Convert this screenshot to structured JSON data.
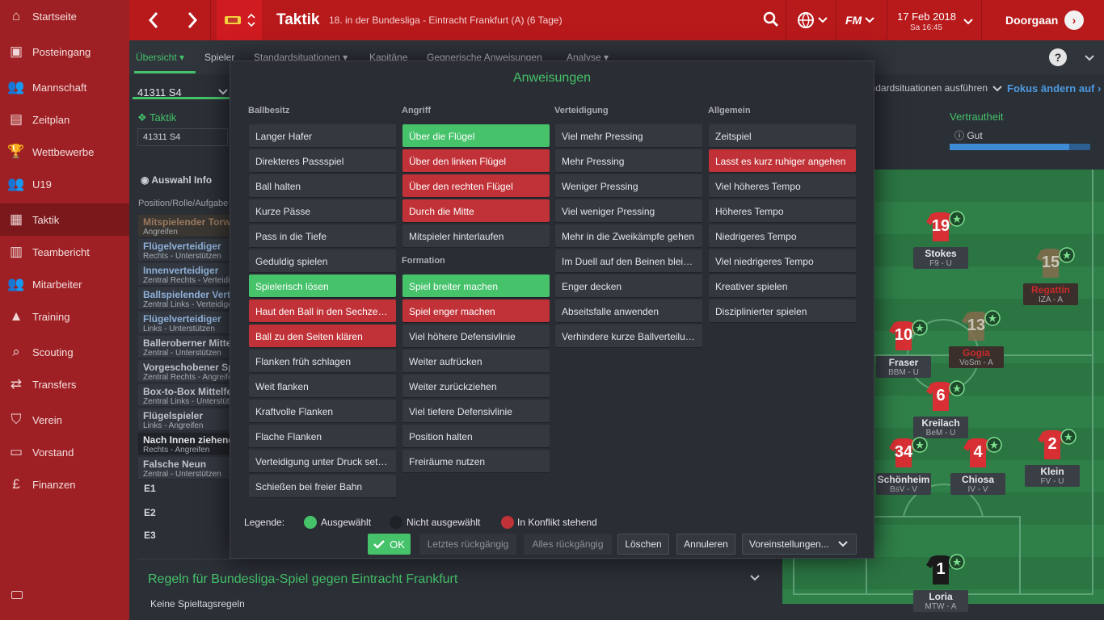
{
  "sidebar": {
    "items": [
      {
        "label": "Startseite",
        "icon": "home-icon"
      },
      {
        "label": "Posteingang",
        "icon": "inbox-icon"
      },
      {
        "label": "Mannschaft",
        "icon": "people-icon"
      },
      {
        "label": "Zeitplan",
        "icon": "calendar-icon"
      },
      {
        "label": "Wettbewerbe",
        "icon": "trophy-icon"
      },
      {
        "label": "U19",
        "icon": "youth-icon",
        "badge": "U19"
      },
      {
        "label": "Taktik",
        "icon": "tactics-icon"
      },
      {
        "label": "Teambericht",
        "icon": "report-icon"
      },
      {
        "label": "Mitarbeiter",
        "icon": "staff-icon"
      },
      {
        "label": "Training",
        "icon": "training-icon"
      },
      {
        "label": "Scouting",
        "icon": "search-icon"
      },
      {
        "label": "Transfers",
        "icon": "transfer-icon"
      },
      {
        "label": "Verein",
        "icon": "shield-icon"
      },
      {
        "label": "Vorstand",
        "icon": "briefcase-icon"
      },
      {
        "label": "Finanzen",
        "icon": "money-icon"
      }
    ],
    "active": "Taktik"
  },
  "header": {
    "title": "Taktik",
    "subtitle": "18. in der Bundesliga - Eintracht Frankfurt (A) (6 Tage)",
    "fm_label": "FM",
    "date": "17 Feb 2018",
    "day_time": "Sa 16:45",
    "continue_label": "Doorgaan",
    "brand_color": "#b8191b"
  },
  "tabs": [
    "Übersicht",
    "Spieler",
    "Standardsituationen",
    "Kapitäne",
    "Gegnerische Anweisungen",
    "Analyse"
  ],
  "active_tab": "Übersicht",
  "background": {
    "formation": "41311 S4",
    "formation_small": "41311 S4",
    "taktik_label": "Taktik",
    "auswahl": "Auswahl Info",
    "pos_header": "Position/Rolle/Aufgabe",
    "positions": [
      {
        "name": "Mitspielender Torwart",
        "duty": "Angreifen",
        "color": "#9a7a5e"
      },
      {
        "name": "Flügelverteidiger",
        "duty": "Rechts - Unterstützen",
        "color": "#8fb0d9"
      },
      {
        "name": "Innenverteidiger",
        "duty": "Zentral Rechts - Verteidigen",
        "color": "#8fb0d9"
      },
      {
        "name": "Ballspielender Verteidiger",
        "duty": "Zentral Links - Verteidigen",
        "color": "#8fb0d9"
      },
      {
        "name": "Flügelverteidiger",
        "duty": "Links - Unterstützen",
        "color": "#8fb0d9"
      },
      {
        "name": "Balleroberner Mittelfeldspieler",
        "duty": "Zentral - Unterstützen",
        "color": "#c0c4ca"
      },
      {
        "name": "Vorgeschobener Spielmacher",
        "duty": "Zentral Rechts - Angreifen",
        "color": "#c0c4ca"
      },
      {
        "name": "Box-to-Box Mittelfeldspieler",
        "duty": "Zentral Links - Unterstützen",
        "color": "#c0c4ca"
      },
      {
        "name": "Flügelspieler",
        "duty": "Links - Angreifen",
        "color": "#c0c4ca"
      },
      {
        "name": "Nach Innen ziehender Flügelspieler",
        "duty": "Rechts - Angreifen",
        "color": "#e6e7e9"
      },
      {
        "name": "Falsche Neun",
        "duty": "Zentral - Unterstützen",
        "color": "#c0c4ca"
      }
    ],
    "subs": [
      "E1",
      "E2",
      "E3"
    ],
    "regeln": "Regeln für Bundesliga-Spiel gegen Eintracht Frankfurt",
    "keine": "Keine Spieltagsregeln",
    "standard_strip": "Standardsituationen ausführen",
    "fokus": "Fokus ändern auf",
    "vertrautheit": "Vertrautheit",
    "gut": "Gut",
    "gut_level": 0.85
  },
  "players": [
    {
      "num": "19",
      "name": "Stokes",
      "role": "F9 - U"
    },
    {
      "num": "15",
      "name": "Regattin",
      "role": "IZA - A"
    },
    {
      "num": "10",
      "name": "Fraser",
      "role": "BBM - U"
    },
    {
      "num": "13",
      "name": "Gogia",
      "role": "VoSm - A"
    },
    {
      "num": "6",
      "name": "Kreilach",
      "role": "BeM - U"
    },
    {
      "num": "34",
      "name": "Schönheim",
      "role": "BsV - V"
    },
    {
      "num": "4",
      "name": "Chiosa",
      "role": "IV - V"
    },
    {
      "num": "2",
      "name": "Klein",
      "role": "FV - U"
    },
    {
      "num": "1",
      "name": "Loria",
      "role": "MTW - A"
    }
  ],
  "modal": {
    "title": "Anweisungen",
    "columns": [
      {
        "header": "Ballbesitz"
      },
      {
        "header": "Angriff"
      },
      {
        "header": "Verteidigung"
      },
      {
        "header": "Allgemein"
      }
    ],
    "formation_header": "Formation",
    "ballbesitz": [
      {
        "label": "Langer Hafer",
        "state": "none"
      },
      {
        "label": "Direkteres Passspiel",
        "state": "none"
      },
      {
        "label": "Ball halten",
        "state": "none"
      },
      {
        "label": "Kurze Pässe",
        "state": "none"
      },
      {
        "label": "Pass in die Tiefe",
        "state": "none"
      },
      {
        "label": "Geduldig spielen",
        "state": "none"
      },
      {
        "label": "Spielerisch lösen",
        "state": "sel"
      },
      {
        "label": "Haut den Ball in den Sechzehner",
        "state": "conf"
      },
      {
        "label": "Ball zu den Seiten klären",
        "state": "conf"
      },
      {
        "label": "Flanken früh schlagen",
        "state": "none"
      },
      {
        "label": "Weit flanken",
        "state": "none"
      },
      {
        "label": "Kraftvolle Flanken",
        "state": "none"
      },
      {
        "label": "Flache Flanken",
        "state": "none"
      },
      {
        "label": "Verteidigung unter Druck setzen",
        "state": "none"
      },
      {
        "label": "Schießen bei freier Bahn",
        "state": "none"
      }
    ],
    "angriff": [
      {
        "label": "Über die Flügel",
        "state": "sel"
      },
      {
        "label": "Über den linken Flügel",
        "state": "conf"
      },
      {
        "label": "Über den rechten Flügel",
        "state": "conf"
      },
      {
        "label": "Durch die Mitte",
        "state": "conf"
      },
      {
        "label": "Mitspieler hinterlaufen",
        "state": "none"
      }
    ],
    "formation": [
      {
        "label": "Spiel breiter machen",
        "state": "sel"
      },
      {
        "label": "Spiel enger machen",
        "state": "conf"
      },
      {
        "label": "Viel höhere Defensivlinie",
        "state": "none"
      },
      {
        "label": "Weiter aufrücken",
        "state": "none"
      },
      {
        "label": "Weiter zurückziehen",
        "state": "none"
      },
      {
        "label": "Viel tiefere Defensivlinie",
        "state": "none"
      },
      {
        "label": "Position halten",
        "state": "none"
      },
      {
        "label": "Freiräume nutzen",
        "state": "none"
      }
    ],
    "verteidigung": [
      {
        "label": "Viel mehr Pressing",
        "state": "none"
      },
      {
        "label": "Mehr Pressing",
        "state": "none"
      },
      {
        "label": "Weniger Pressing",
        "state": "none"
      },
      {
        "label": "Viel weniger Pressing",
        "state": "none"
      },
      {
        "label": "Mehr in die Zweikämpfe gehen",
        "state": "none"
      },
      {
        "label": "Im Duell auf den Beinen bleiben",
        "state": "none"
      },
      {
        "label": "Enger decken",
        "state": "none"
      },
      {
        "label": "Abseitsfalle anwenden",
        "state": "none"
      },
      {
        "label": "Verhindere kurze Ballverteilung",
        "state": "none"
      }
    ],
    "allgemein": [
      {
        "label": "Zeitspiel",
        "state": "none"
      },
      {
        "label": "Lasst es kurz ruhiger angehen",
        "state": "conf"
      },
      {
        "label": "Viel höheres Tempo",
        "state": "none"
      },
      {
        "label": "Höheres Tempo",
        "state": "none"
      },
      {
        "label": "Niedrigeres Tempo",
        "state": "none"
      },
      {
        "label": "Viel niedrigeres Tempo",
        "state": "none"
      },
      {
        "label": "Kreativer spielen",
        "state": "none"
      },
      {
        "label": "Disziplinierter spielen",
        "state": "none"
      }
    ],
    "legend": {
      "label": "Legende:",
      "selected": "Ausgewählt",
      "not_selected": "Nicht ausgewählt",
      "conflict": "In Konflikt stehend",
      "selected_color": "#45c26a",
      "not_selected_color": "#1e2125",
      "conflict_color": "#c13238"
    },
    "buttons": {
      "ok": "OK",
      "undo_last": "Letztes rückgängig",
      "undo_all": "Alles rückgängig",
      "delete": "Löschen",
      "cancel": "Annuleren",
      "presets": "Voreinstellungen..."
    }
  }
}
